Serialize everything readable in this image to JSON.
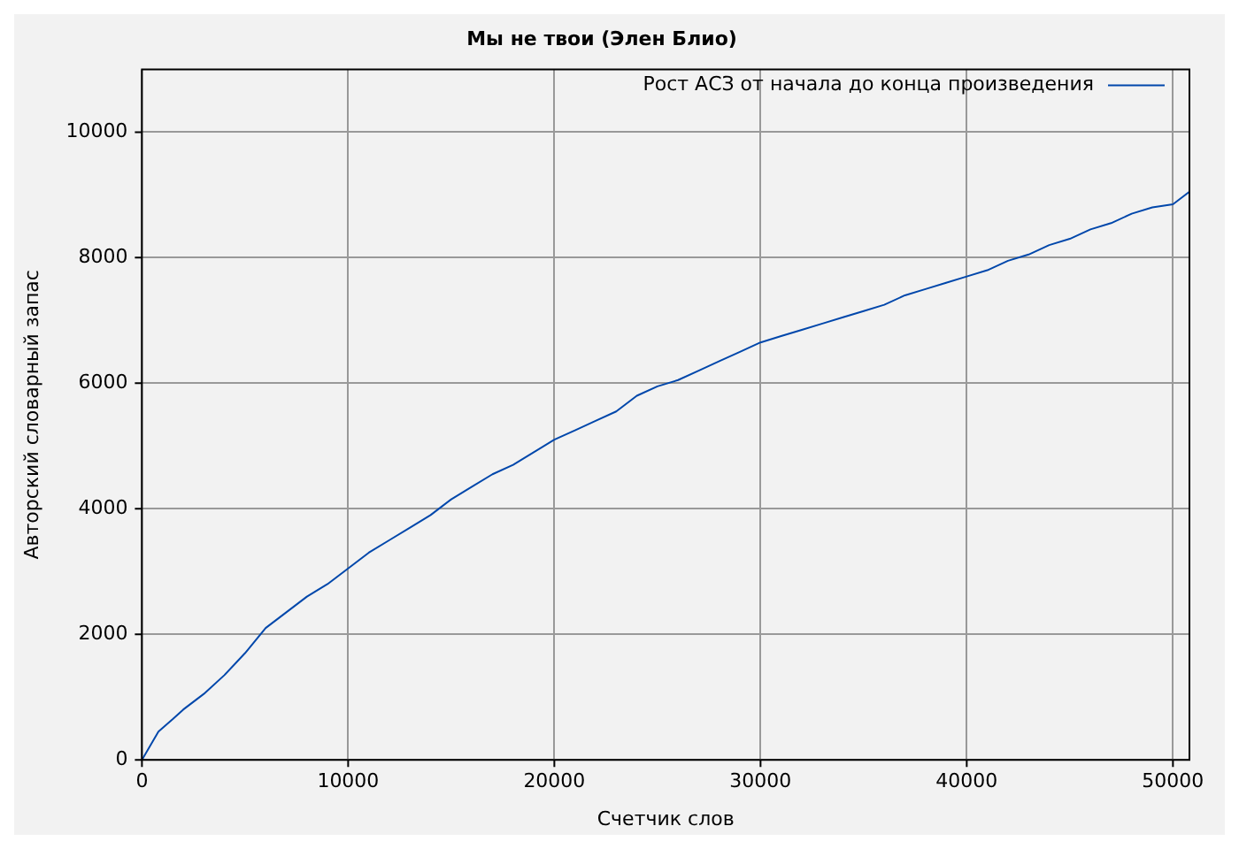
{
  "chart_data": {
    "type": "line",
    "title": "Мы не твои (Элен Блио)",
    "xlabel": "Счетчик слов",
    "ylabel": "Авторский словарный запас",
    "xlim": [
      0,
      50800
    ],
    "xticks": [
      0,
      10000,
      20000,
      30000,
      40000,
      50000
    ],
    "ylim": [
      0,
      11000
    ],
    "yticks": [
      0,
      2000,
      4000,
      6000,
      8000,
      10000
    ],
    "grid": true,
    "legend": "top right",
    "marker": "none",
    "line_style": "solid",
    "x": [
      0,
      800,
      1500,
      2000,
      3000,
      4000,
      5000,
      6000,
      7000,
      8000,
      9000,
      10000,
      11000,
      12000,
      13000,
      14000,
      15000,
      16000,
      17000,
      18000,
      19000,
      20000,
      21000,
      22000,
      23000,
      24000,
      25000,
      26000,
      27000,
      28000,
      29000,
      30000,
      31000,
      32000,
      33000,
      34000,
      35000,
      36000,
      37000,
      38000,
      39000,
      40000,
      41000,
      42000,
      43000,
      44000,
      45000,
      46000,
      47000,
      48000,
      49000,
      50000,
      50800
    ],
    "series": [
      {
        "name": "Рост АСЗ от начала до конца произведения",
        "color": "#0047ab",
        "values": [
          0,
          450,
          650,
          800,
          1050,
          1350,
          1700,
          2100,
          2350,
          2600,
          2800,
          3050,
          3300,
          3500,
          3700,
          3900,
          4150,
          4350,
          4550,
          4700,
          4900,
          5100,
          5250,
          5400,
          5550,
          5800,
          5950,
          6050,
          6200,
          6350,
          6500,
          6650,
          6750,
          6850,
          6950,
          7050,
          7150,
          7250,
          7400,
          7500,
          7600,
          7700,
          7800,
          7950,
          8050,
          8200,
          8300,
          8450,
          8550,
          8700,
          8800,
          8850,
          9050
        ]
      }
    ]
  }
}
